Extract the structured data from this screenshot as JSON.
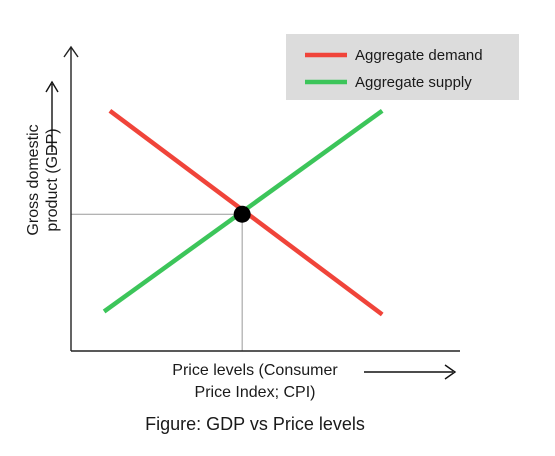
{
  "chart_data": {
    "type": "line",
    "title": "",
    "caption": "Figure: GDP vs Price levels",
    "xlabel": "Price levels (Consumer Price Index; CPI)",
    "xlabel_lines": [
      "Price levels (Consumer",
      "Price Index; CPI)"
    ],
    "ylabel": "Gross domestic product (GDP)",
    "ylabel_lines": [
      "Gross domestic",
      "product (GDP)"
    ],
    "xlim": [
      0,
      10
    ],
    "ylim": [
      0,
      10
    ],
    "grid": false,
    "axis_ticks": false,
    "legend_position": "top-right",
    "series": [
      {
        "name": "Aggregate demand",
        "color": "#f0443a",
        "x": [
          1.0,
          8.0
        ],
        "y": [
          7.9,
          1.2
        ]
      },
      {
        "name": "Aggregate supply",
        "color": "#3cc55a",
        "x": [
          0.85,
          8.0
        ],
        "y": [
          1.3,
          7.9
        ]
      }
    ],
    "equilibrium": {
      "x": 4.4,
      "y": 4.5,
      "color": "#000000"
    }
  }
}
